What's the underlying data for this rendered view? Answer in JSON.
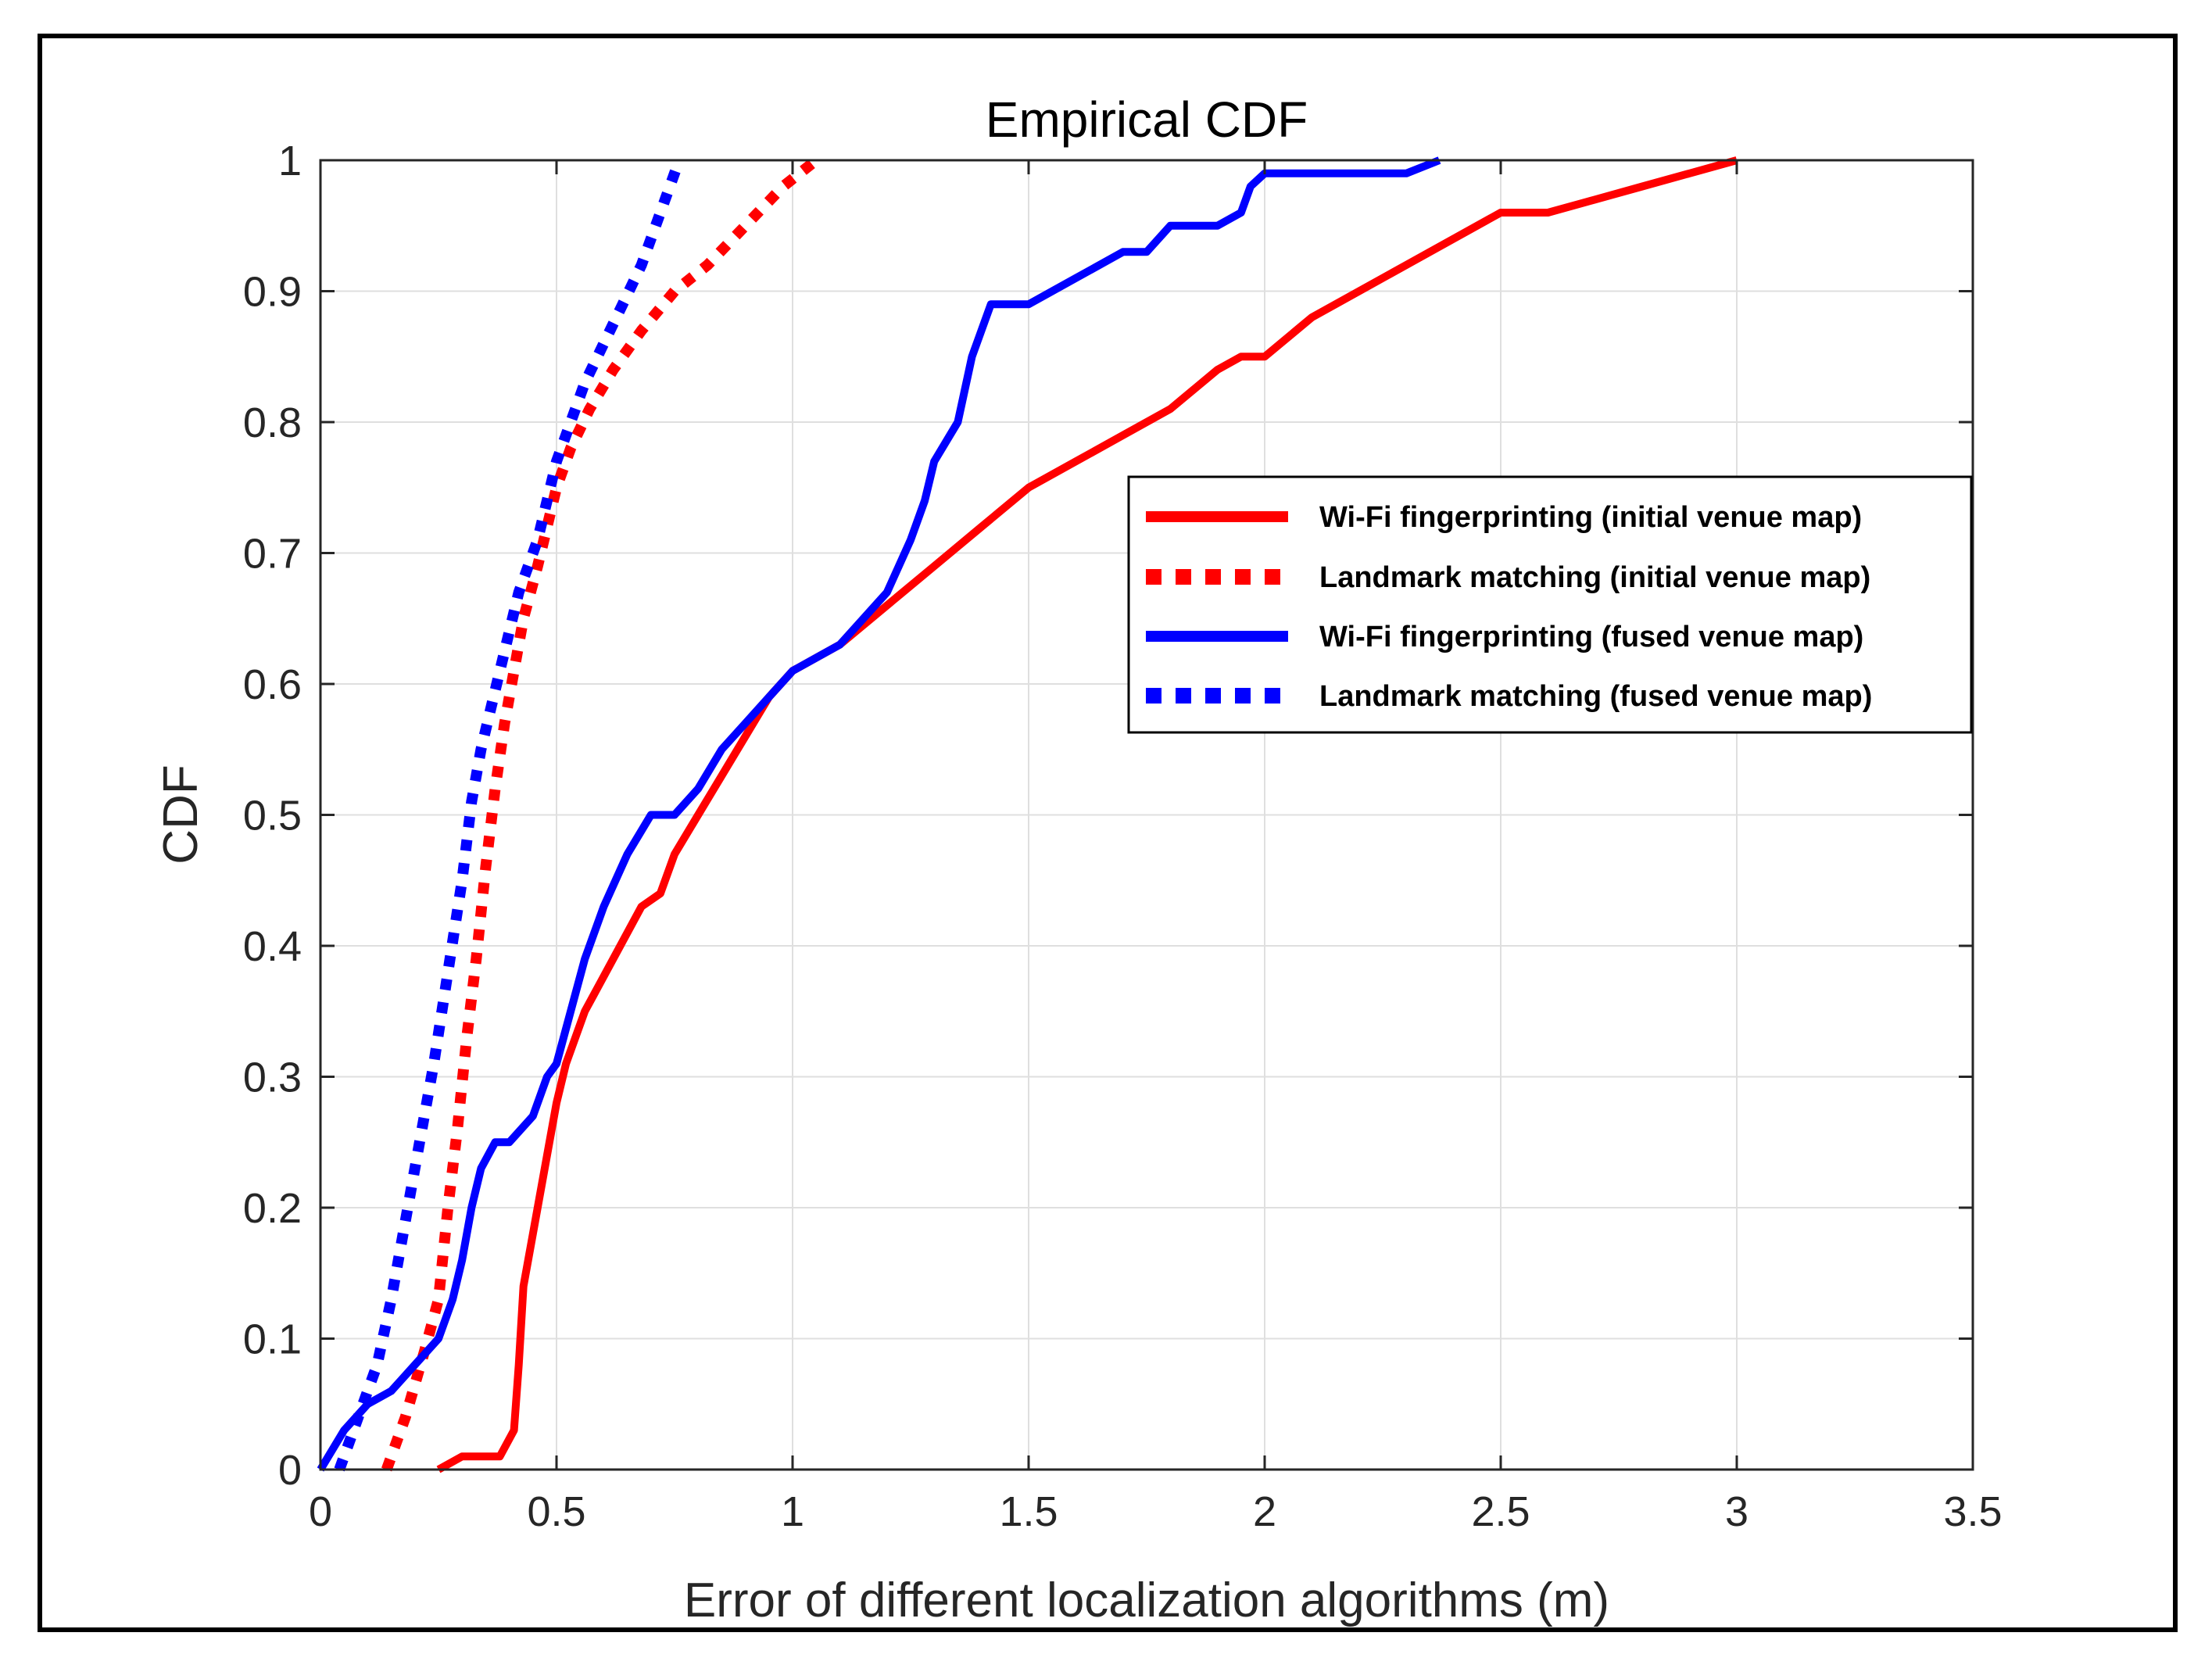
{
  "chart_data": {
    "type": "line",
    "title": "Empirical CDF",
    "xlabel": "Error of different localization algorithms (m)",
    "ylabel": "CDF",
    "xlim": [
      0,
      3.5
    ],
    "ylim": [
      0,
      1
    ],
    "xticks": [
      "0",
      "0.5",
      "1",
      "1.5",
      "2",
      "2.5",
      "3",
      "3.5"
    ],
    "yticks": [
      "0",
      "0.1",
      "0.2",
      "0.3",
      "0.4",
      "0.5",
      "0.6",
      "0.7",
      "0.8",
      "0.9",
      "1"
    ],
    "grid": true,
    "legend_position": "right",
    "series": [
      {
        "name": "Wi-Fi fingerprinting (initial venue map)",
        "color": "#ff0000",
        "style": "solid",
        "x": [
          0.25,
          0.3,
          0.38,
          0.41,
          0.42,
          0.43,
          0.45,
          0.48,
          0.5,
          0.52,
          0.56,
          0.62,
          0.68,
          0.72,
          0.75,
          0.8,
          0.85,
          0.9,
          0.95,
          1.0,
          1.1,
          1.2,
          1.3,
          1.4,
          1.5,
          1.6,
          1.7,
          1.8,
          1.9,
          1.95,
          2.0,
          2.1,
          2.2,
          2.3,
          2.4,
          2.5,
          2.6,
          2.7,
          2.8,
          2.9,
          3.0
        ],
        "y": [
          0.0,
          0.01,
          0.01,
          0.03,
          0.08,
          0.14,
          0.18,
          0.24,
          0.28,
          0.31,
          0.35,
          0.39,
          0.43,
          0.44,
          0.47,
          0.5,
          0.53,
          0.56,
          0.59,
          0.61,
          0.63,
          0.66,
          0.69,
          0.72,
          0.75,
          0.77,
          0.79,
          0.81,
          0.84,
          0.85,
          0.85,
          0.88,
          0.9,
          0.92,
          0.94,
          0.96,
          0.96,
          0.97,
          0.98,
          0.99,
          1.0
        ]
      },
      {
        "name": "Landmark matching (initial venue map)",
        "color": "#ff0000",
        "style": "dotted",
        "x": [
          0.14,
          0.18,
          0.22,
          0.25,
          0.27,
          0.29,
          0.31,
          0.33,
          0.35,
          0.37,
          0.39,
          0.41,
          0.43,
          0.46,
          0.48,
          0.5,
          0.53,
          0.57,
          0.62,
          0.68,
          0.75,
          0.82,
          0.9,
          0.98,
          1.05
        ],
        "y": [
          0.0,
          0.04,
          0.09,
          0.13,
          0.2,
          0.26,
          0.33,
          0.39,
          0.46,
          0.52,
          0.57,
          0.61,
          0.65,
          0.69,
          0.72,
          0.75,
          0.78,
          0.81,
          0.84,
          0.87,
          0.9,
          0.92,
          0.95,
          0.98,
          1.0
        ]
      },
      {
        "name": "Wi-Fi fingerprinting (fused venue map)",
        "color": "#0000ff",
        "style": "solid",
        "x": [
          0.0,
          0.05,
          0.1,
          0.15,
          0.2,
          0.25,
          0.28,
          0.3,
          0.32,
          0.34,
          0.37,
          0.4,
          0.45,
          0.48,
          0.5,
          0.53,
          0.56,
          0.6,
          0.65,
          0.7,
          0.75,
          0.8,
          0.85,
          0.9,
          0.95,
          1.0,
          1.05,
          1.1,
          1.15,
          1.2,
          1.25,
          1.28,
          1.3,
          1.35,
          1.38,
          1.42,
          1.5,
          1.55,
          1.6,
          1.7,
          1.75,
          1.8,
          1.85,
          1.9,
          1.95,
          1.97,
          2.0,
          2.1,
          2.2,
          2.3,
          2.37
        ],
        "y": [
          0.0,
          0.03,
          0.05,
          0.06,
          0.08,
          0.1,
          0.13,
          0.16,
          0.2,
          0.23,
          0.25,
          0.25,
          0.27,
          0.3,
          0.31,
          0.35,
          0.39,
          0.43,
          0.47,
          0.5,
          0.5,
          0.52,
          0.55,
          0.57,
          0.59,
          0.61,
          0.62,
          0.63,
          0.65,
          0.67,
          0.71,
          0.74,
          0.77,
          0.8,
          0.85,
          0.89,
          0.89,
          0.9,
          0.91,
          0.93,
          0.93,
          0.95,
          0.95,
          0.95,
          0.96,
          0.98,
          0.99,
          0.99,
          0.99,
          0.99,
          1.0
        ]
      },
      {
        "name": "Landmark matching (fused venue map)",
        "color": "#0000ff",
        "style": "dotted",
        "x": [
          0.04,
          0.08,
          0.12,
          0.15,
          0.18,
          0.21,
          0.24,
          0.27,
          0.3,
          0.32,
          0.34,
          0.36,
          0.38,
          0.4,
          0.42,
          0.44,
          0.46,
          0.48,
          0.5,
          0.53,
          0.56,
          0.6,
          0.64,
          0.68,
          0.72,
          0.76
        ],
        "y": [
          0.0,
          0.04,
          0.08,
          0.13,
          0.19,
          0.25,
          0.31,
          0.38,
          0.45,
          0.51,
          0.55,
          0.58,
          0.61,
          0.64,
          0.67,
          0.69,
          0.71,
          0.74,
          0.77,
          0.8,
          0.83,
          0.86,
          0.89,
          0.92,
          0.96,
          1.0
        ]
      }
    ]
  }
}
